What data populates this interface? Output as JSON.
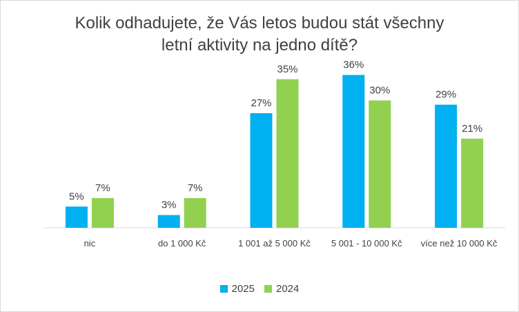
{
  "colors": {
    "2025": "#00b0f0",
    "2024": "#92d050"
  },
  "chart_data": {
    "type": "bar",
    "title_lines": [
      "Kolik odhadujete, že Vás letos budou stát všechny",
      "letní aktivity na jedno dítě?"
    ],
    "categories": [
      "nic",
      "do 1 000 Kč",
      "1 001 až 5 000 Kč",
      "5 001 - 10 000 Kč",
      "více než 10 000 Kč"
    ],
    "series": [
      {
        "name": "2025",
        "values": [
          5,
          3,
          27,
          36,
          29
        ],
        "labels": [
          "5%",
          "3%",
          "27%",
          "36%",
          "29%"
        ]
      },
      {
        "name": "2024",
        "values": [
          7,
          7,
          35,
          30,
          21
        ],
        "labels": [
          "7%",
          "7%",
          "35%",
          "30%",
          "21%"
        ]
      }
    ],
    "ylim": [
      0,
      40
    ],
    "grid": false,
    "legend_position": "bottom"
  }
}
